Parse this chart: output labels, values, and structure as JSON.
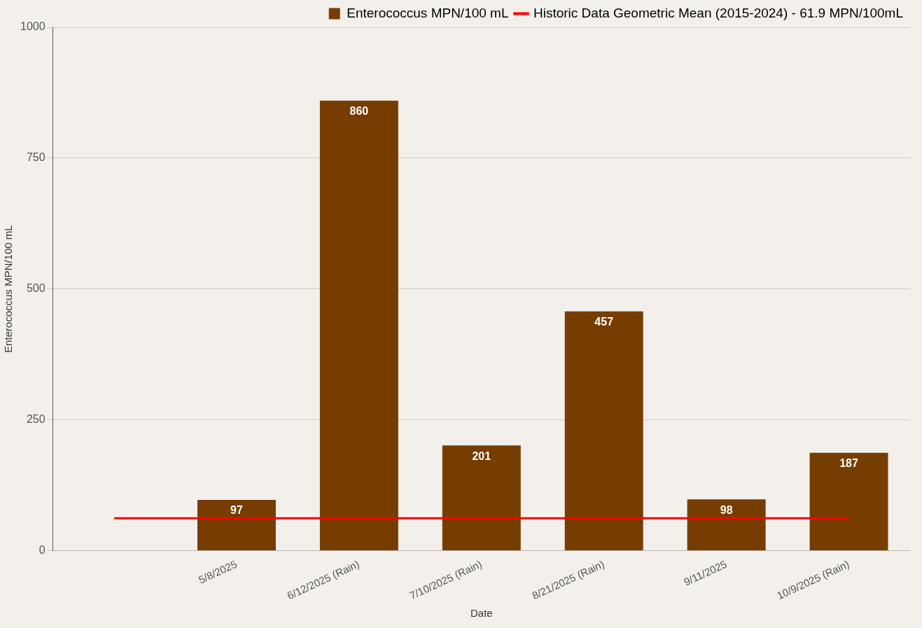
{
  "chart_data": {
    "type": "bar",
    "xlabel": "Date",
    "ylabel": "Enterococcus MPN/100 mL",
    "categories": [
      null,
      "5/8/2025",
      "6/12/2025 (Rain)",
      "7/10/2025 (Rain)",
      "8/21/2025 (Rain)",
      "9/11/2025",
      "10/9/2025 (Rain)"
    ],
    "series": [
      {
        "name": "Enterococcus MPN/100 mL",
        "color": "#763c00",
        "values": [
          null,
          97,
          860,
          201,
          457,
          98,
          187
        ],
        "value_labels": [
          null,
          "97",
          "860",
          "201",
          "457",
          "98",
          "187"
        ]
      },
      {
        "name": "Historic Data Geometric Mean (2015-2024) - 61.9 MPN/100mL",
        "type": "line",
        "color": "#ff0000",
        "values": [
          61.9,
          61.9,
          61.9,
          61.9,
          61.9,
          61.9,
          61.9
        ]
      }
    ],
    "ylim": [
      0,
      1000
    ],
    "yticks": [
      0,
      250,
      500,
      750,
      1000
    ],
    "grid": "y",
    "legend": "top right",
    "marker": "none"
  }
}
